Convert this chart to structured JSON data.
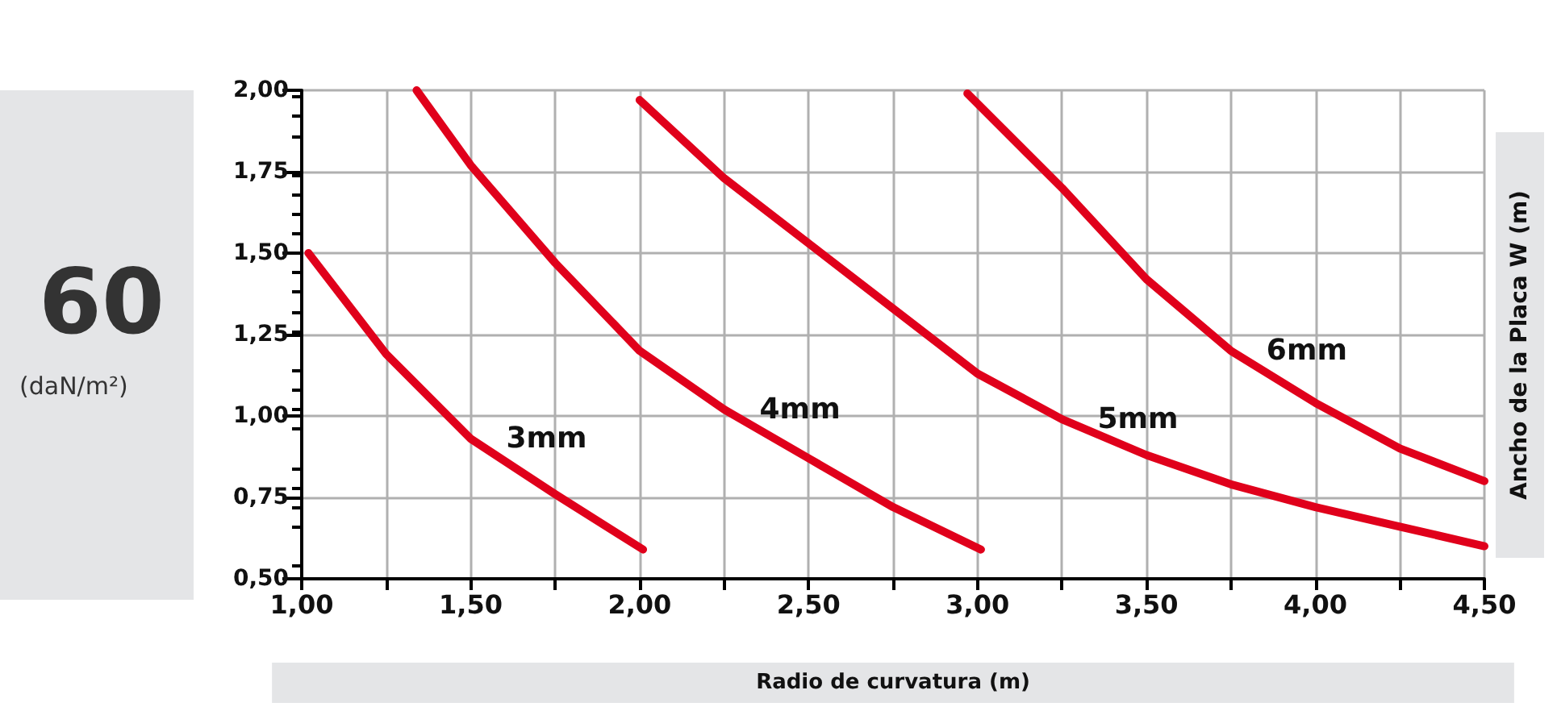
{
  "chart_data": {
    "type": "line",
    "xlabel": "Radio de curvatura (m)",
    "ylabel": "Ancho de la Placa W (m)",
    "annotations": [
      "60",
      "(daN/m²)"
    ],
    "xlim": [
      1,
      4.5
    ],
    "xticks": [
      {
        "value": 1,
        "label": "1,00"
      },
      {
        "value": 1.25,
        "label": null
      },
      {
        "value": 1.5,
        "label": "1,50"
      },
      {
        "value": 1.75,
        "label": null
      },
      {
        "value": 2,
        "label": "2,00"
      },
      {
        "value": 2.25,
        "label": null
      },
      {
        "value": 2.5,
        "label": "2,50"
      },
      {
        "value": 2.75,
        "label": null
      },
      {
        "value": 3,
        "label": "3,00"
      },
      {
        "value": 3.25,
        "label": null
      },
      {
        "value": 3.5,
        "label": "3,50"
      },
      {
        "value": 3.75,
        "label": null
      },
      {
        "value": 4,
        "label": "4,00"
      },
      {
        "value": 4.25,
        "label": null
      },
      {
        "value": 4.5,
        "label": "4,50"
      }
    ],
    "ylim": [
      0.5,
      2
    ],
    "yticks": [
      {
        "value": 0.5,
        "label": "0,50"
      },
      {
        "value": 0.75,
        "label": "0,75"
      },
      {
        "value": 1,
        "label": "1,00"
      },
      {
        "value": 1.25,
        "label": "1,25"
      },
      {
        "value": 1.5,
        "label": "1,50"
      },
      {
        "value": 1.75,
        "label": "1,75"
      },
      {
        "value": 2,
        "label": "2,00"
      }
    ],
    "grid": true,
    "marker": "none",
    "line_style": "solid",
    "legend": false,
    "series": [
      {
        "name": "3mm",
        "color": "#e0001b",
        "x": [
          1.02,
          1.25,
          1.5,
          1.75,
          2.01
        ],
        "values": [
          1.5,
          1.19,
          0.93,
          0.76,
          0.59
        ]
      },
      {
        "name": "4mm",
        "color": "#e0001b",
        "x": [
          1.34,
          1.5,
          1.75,
          2,
          2.25,
          2.5,
          2.75,
          3.01
        ],
        "values": [
          2,
          1.77,
          1.47,
          1.2,
          1.02,
          0.87,
          0.72,
          0.59
        ]
      },
      {
        "name": "5mm",
        "color": "#e0001b",
        "x": [
          2,
          2.25,
          2.5,
          2.75,
          3,
          3.25,
          3.5,
          3.75,
          4,
          4.25,
          4.5
        ],
        "values": [
          1.97,
          1.73,
          1.53,
          1.33,
          1.13,
          0.99,
          0.88,
          0.79,
          0.72,
          0.66,
          0.6
        ]
      },
      {
        "name": "6mm",
        "color": "#e0001b",
        "x": [
          2.97,
          3.25,
          3.5,
          3.75,
          4,
          4.25,
          4.5
        ],
        "values": [
          1.99,
          1.7,
          1.42,
          1.2,
          1.04,
          0.9,
          0.8
        ]
      }
    ]
  }
}
